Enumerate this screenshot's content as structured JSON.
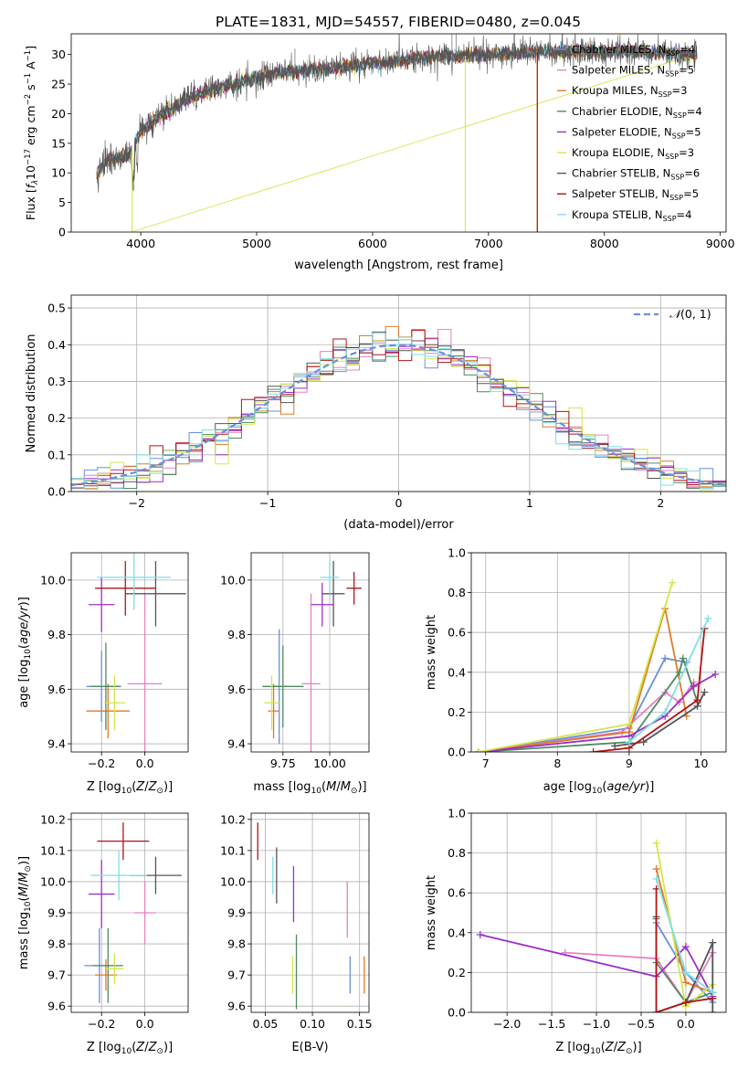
{
  "figure_title": "PLATE=1831, MJD=54557, FIBERID=0480, z=0.045",
  "models": [
    {
      "label": "Chabrier MILES, N",
      "n": "4",
      "color": "#6a8fdb"
    },
    {
      "label": "Salpeter MILES, N",
      "n": "5",
      "color": "#e580c0"
    },
    {
      "label": "Kroupa MILES, N",
      "n": "3",
      "color": "#e07a28"
    },
    {
      "label": "Chabrier ELODIE, N",
      "n": "4",
      "color": "#4f8a5e"
    },
    {
      "label": "Salpeter ELODIE, N",
      "n": "5",
      "color": "#9b30c8"
    },
    {
      "label": "Kroupa ELODIE, N",
      "n": "3",
      "color": "#d4e64a"
    },
    {
      "label": "Chabrier STELIB, N",
      "n": "6",
      "color": "#555555"
    },
    {
      "label": "Salpeter STELIB, N",
      "n": "5",
      "color": "#b01515"
    },
    {
      "label": "Kroupa STELIB, N",
      "n": "4",
      "color": "#7fdfe6"
    }
  ],
  "legend_ssp_sub": "SSP",
  "chart_data": [
    {
      "id": "spectrum",
      "type": "line",
      "xlabel": "wavelength [Angstrom, rest frame]",
      "ylabel": "Flux [f_λ10^-17 erg cm^-2 s^-1 A^-1]",
      "xlim": [
        3400,
        9050
      ],
      "ylim": [
        0,
        33.5
      ],
      "xticks": [
        4000,
        5000,
        6000,
        7000,
        8000,
        9000
      ],
      "yticks": [
        0,
        5,
        10,
        15,
        20,
        25,
        30
      ],
      "continuum_anchors": [
        [
          3620,
          9.5
        ],
        [
          3700,
          12
        ],
        [
          3900,
          13
        ],
        [
          4000,
          17
        ],
        [
          4200,
          20
        ],
        [
          4400,
          22.5
        ],
        [
          4600,
          24
        ],
        [
          4900,
          25.5
        ],
        [
          5200,
          27
        ],
        [
          5600,
          27.5
        ],
        [
          6000,
          28.5
        ],
        [
          6500,
          29.5
        ],
        [
          7000,
          30
        ],
        [
          7500,
          30.5
        ],
        [
          8000,
          30.5
        ],
        [
          8500,
          30.3
        ],
        [
          8800,
          30
        ]
      ],
      "range": [
        3620,
        8800
      ],
      "model_gaps": {
        "3": [
          3920,
          8800
        ],
        "5": [
          3920,
          8800
        ]
      },
      "model_drops": [
        [
          6800,
          5
        ],
        [
          7420,
          7
        ],
        [
          7420,
          2
        ]
      ]
    },
    {
      "id": "residuals",
      "type": "step-histogram",
      "xlabel": "(data-model)/error",
      "ylabel": "Normed distribution",
      "xlim": [
        -2.5,
        2.5
      ],
      "ylim": [
        0,
        0.535
      ],
      "xticks": [
        -2,
        -1,
        0,
        1,
        2
      ],
      "yticks": [
        0.0,
        0.1,
        0.2,
        0.3,
        0.4,
        0.5
      ],
      "bin_width": 0.1,
      "gaussian_label": "N(0,1)"
    },
    {
      "id": "age_vs_Z",
      "type": "errorbar",
      "xlabel": "Z [log10(Z/Z⊙)]",
      "ylabel": "age [log10(age/yr)]",
      "xlim": [
        -0.34,
        0.2
      ],
      "ylim": [
        9.37,
        10.1
      ],
      "xticks": [
        -0.2,
        0.0
      ],
      "yticks": [
        9.4,
        9.6,
        9.8,
        10.0
      ],
      "points": [
        {
          "m": 0,
          "x": -0.2,
          "y": 9.61,
          "xe": 0.07,
          "ye": 0.13
        },
        {
          "m": 1,
          "x": 0.0,
          "y": 9.62,
          "xe": 0.08,
          "ye": 0.33
        },
        {
          "m": 2,
          "x": -0.17,
          "y": 9.52,
          "xe": 0.1,
          "ye": 0.1
        },
        {
          "m": 3,
          "x": -0.18,
          "y": 9.61,
          "xe": 0.07,
          "ye": 0.16
        },
        {
          "m": 4,
          "x": -0.2,
          "y": 9.91,
          "xe": 0.06,
          "ye": 0.1
        },
        {
          "m": 5,
          "x": -0.14,
          "y": 9.55,
          "xe": 0.05,
          "ye": 0.1
        },
        {
          "m": 6,
          "x": 0.05,
          "y": 9.95,
          "xe": 0.14,
          "ye": 0.12
        },
        {
          "m": 7,
          "x": -0.09,
          "y": 9.97,
          "xe": 0.14,
          "ye": 0.1
        },
        {
          "m": 8,
          "x": -0.05,
          "y": 10.01,
          "xe": 0.17,
          "ye": 0.12
        }
      ]
    },
    {
      "id": "age_vs_mass",
      "type": "errorbar",
      "xlabel": "mass [log10(M/M⊙)]",
      "ylabel": "",
      "xlim": [
        9.58,
        10.21
      ],
      "ylim": [
        9.37,
        10.1
      ],
      "xticks": [
        9.75,
        10.0
      ],
      "yticks": [
        9.4,
        9.6,
        9.8,
        10.0
      ],
      "points": [
        {
          "m": 0,
          "x": 9.73,
          "y": 9.61,
          "xe": 0.04,
          "ye": 0.21
        },
        {
          "m": 1,
          "x": 9.9,
          "y": 9.62,
          "xe": 0.05,
          "ye": 0.33
        },
        {
          "m": 2,
          "x": 9.7,
          "y": 9.52,
          "xe": 0.03,
          "ye": 0.1
        },
        {
          "m": 3,
          "x": 9.75,
          "y": 9.61,
          "xe": 0.11,
          "ye": 0.15
        },
        {
          "m": 4,
          "x": 9.96,
          "y": 9.91,
          "xe": 0.06,
          "ye": 0.08
        },
        {
          "m": 5,
          "x": 9.69,
          "y": 9.55,
          "xe": 0.04,
          "ye": 0.1
        },
        {
          "m": 6,
          "x": 10.02,
          "y": 9.95,
          "xe": 0.06,
          "ye": 0.12
        },
        {
          "m": 7,
          "x": 10.13,
          "y": 9.97,
          "xe": 0.04,
          "ye": 0.06
        },
        {
          "m": 8,
          "x": 10.0,
          "y": 10.01,
          "xe": 0.05,
          "ye": 0.06
        }
      ]
    },
    {
      "id": "weight_vs_age",
      "type": "line",
      "xlabel": "age [log10(age/yr)]",
      "ylabel": "mass weight",
      "xlim": [
        6.8,
        10.35
      ],
      "ylim": [
        0,
        1.0
      ],
      "xticks": [
        7,
        8,
        9,
        10
      ],
      "yticks": [
        0.0,
        0.2,
        0.4,
        0.6,
        0.8,
        1.0
      ],
      "series": [
        {
          "m": 0,
          "x": [
            6.9,
            9.0,
            9.5,
            9.8
          ],
          "y": [
            0.0,
            0.12,
            0.47,
            0.45
          ]
        },
        {
          "m": 1,
          "x": [
            6.9,
            8.9,
            9.5,
            9.7,
            9.9
          ],
          "y": [
            0.0,
            0.1,
            0.3,
            0.25,
            0.35
          ]
        },
        {
          "m": 2,
          "x": [
            6.9,
            9.0,
            9.5,
            9.8
          ],
          "y": [
            0.0,
            0.1,
            0.72,
            0.18
          ]
        },
        {
          "m": 3,
          "x": [
            6.9,
            9.0,
            9.7,
            9.75,
            9.95
          ],
          "y": [
            0.0,
            0.05,
            0.4,
            0.47,
            0.25
          ]
        },
        {
          "m": 4,
          "x": [
            6.9,
            9.0,
            9.5,
            9.9,
            10.2
          ],
          "y": [
            0.0,
            0.08,
            0.18,
            0.33,
            0.39
          ]
        },
        {
          "m": 5,
          "x": [
            6.9,
            9.0,
            9.6
          ],
          "y": [
            0.0,
            0.14,
            0.85
          ]
        },
        {
          "m": 6,
          "x": [
            8.8,
            9.2,
            9.95,
            10.05
          ],
          "y": [
            0.03,
            0.05,
            0.23,
            0.3
          ]
        },
        {
          "m": 7,
          "x": [
            8.5,
            9.0,
            9.95,
            10.05
          ],
          "y": [
            0.0,
            0.02,
            0.26,
            0.62
          ]
        },
        {
          "m": 8,
          "x": [
            9.0,
            9.5,
            10.1
          ],
          "y": [
            0.05,
            0.2,
            0.67
          ]
        }
      ]
    },
    {
      "id": "mass_vs_Z",
      "type": "errorbar",
      "xlabel": "Z [log10(Z/Z⊙)]",
      "ylabel": "mass [log10(M/M⊙)]",
      "xlim": [
        -0.34,
        0.2
      ],
      "ylim": [
        9.58,
        10.22
      ],
      "xticks": [
        -0.2,
        0.0
      ],
      "yticks": [
        9.6,
        9.7,
        9.8,
        9.9,
        10.0,
        10.1,
        10.2
      ],
      "points": [
        {
          "m": 0,
          "x": -0.21,
          "y": 9.73,
          "xe": 0.07,
          "ye": 0.12
        },
        {
          "m": 1,
          "x": 0.0,
          "y": 9.9,
          "xe": 0.05,
          "ye": 0.1
        },
        {
          "m": 2,
          "x": -0.18,
          "y": 9.7,
          "xe": 0.05,
          "ye": 0.05
        },
        {
          "m": 3,
          "x": -0.17,
          "y": 9.73,
          "xe": 0.07,
          "ye": 0.12
        },
        {
          "m": 4,
          "x": -0.2,
          "y": 9.96,
          "xe": 0.06,
          "ye": 0.11
        },
        {
          "m": 5,
          "x": -0.14,
          "y": 9.72,
          "xe": 0.04,
          "ye": 0.05
        },
        {
          "m": 6,
          "x": 0.05,
          "y": 10.02,
          "xe": 0.12,
          "ye": 0.06
        },
        {
          "m": 7,
          "x": -0.1,
          "y": 10.13,
          "xe": 0.12,
          "ye": 0.06
        },
        {
          "m": 8,
          "x": -0.12,
          "y": 10.02,
          "xe": 0.13,
          "ye": 0.08
        }
      ]
    },
    {
      "id": "mass_vs_EBV",
      "type": "errorbar",
      "xlabel": "E(B-V)",
      "ylabel": "",
      "xlim": [
        0.035,
        0.16
      ],
      "ylim": [
        9.58,
        10.22
      ],
      "xticks": [
        0.05,
        0.1,
        0.15
      ],
      "yticks": [
        9.6,
        9.7,
        9.8,
        9.9,
        10.0,
        10.1,
        10.2
      ],
      "points": [
        {
          "m": 0,
          "x": 0.14,
          "y": 9.7,
          "xe": 0.0,
          "ye": 0.06
        },
        {
          "m": 1,
          "x": 0.137,
          "y": 9.91,
          "xe": 0.0,
          "ye": 0.09
        },
        {
          "m": 2,
          "x": 0.155,
          "y": 9.7,
          "xe": 0.0,
          "ye": 0.06
        },
        {
          "m": 3,
          "x": 0.083,
          "y": 9.71,
          "xe": 0.0,
          "ye": 0.12
        },
        {
          "m": 4,
          "x": 0.08,
          "y": 9.96,
          "xe": 0.0,
          "ye": 0.09
        },
        {
          "m": 5,
          "x": 0.079,
          "y": 9.7,
          "xe": 0.0,
          "ye": 0.06
        },
        {
          "m": 6,
          "x": 0.062,
          "y": 10.02,
          "xe": 0.0,
          "ye": 0.09
        },
        {
          "m": 7,
          "x": 0.042,
          "y": 10.13,
          "xe": 0.0,
          "ye": 0.06
        },
        {
          "m": 8,
          "x": 0.058,
          "y": 10.02,
          "xe": 0.0,
          "ye": 0.06
        }
      ]
    },
    {
      "id": "weight_vs_Z",
      "type": "line",
      "xlabel": "Z [log10(Z/Z⊙)]",
      "ylabel": "mass weight",
      "xlim": [
        -2.4,
        0.45
      ],
      "ylim": [
        0,
        1.0
      ],
      "xticks": [
        -2.0,
        -1.5,
        -1.0,
        -0.5,
        0.0
      ],
      "yticks": [
        0.0,
        0.2,
        0.4,
        0.6,
        0.8,
        1.0
      ],
      "series": [
        {
          "m": 0,
          "x": [
            -0.33,
            0.0,
            0.3
          ],
          "y": [
            0.45,
            0.2,
            0.05
          ]
        },
        {
          "m": 1,
          "x": [
            -1.35,
            -0.33,
            0.0,
            0.3
          ],
          "y": [
            0.3,
            0.27,
            0.05,
            0.3
          ]
        },
        {
          "m": 2,
          "x": [
            -0.33,
            0.0,
            0.3
          ],
          "y": [
            0.72,
            0.15,
            0.1
          ]
        },
        {
          "m": 3,
          "x": [
            -0.33,
            -0.33,
            0.0,
            0.3
          ],
          "y": [
            0.47,
            0.25,
            0.05,
            0.1
          ]
        },
        {
          "m": 4,
          "x": [
            -2.3,
            -0.33,
            0.0,
            0.3
          ],
          "y": [
            0.39,
            0.18,
            0.33,
            0.08
          ]
        },
        {
          "m": 5,
          "x": [
            -0.33,
            0.0,
            0.3
          ],
          "y": [
            0.85,
            0.03,
            0.14
          ]
        },
        {
          "m": 6,
          "x": [
            -0.33,
            -0.33,
            0.0,
            0.3,
            0.3
          ],
          "y": [
            0.48,
            0.0,
            0.05,
            0.35,
            0.0
          ]
        },
        {
          "m": 7,
          "x": [
            -0.33,
            -0.33,
            0.0,
            0.3
          ],
          "y": [
            0.62,
            0.0,
            0.05,
            0.07
          ]
        },
        {
          "m": 8,
          "x": [
            -0.33,
            0.0,
            0.3
          ],
          "y": [
            0.67,
            0.2,
            0.1
          ]
        }
      ]
    }
  ]
}
